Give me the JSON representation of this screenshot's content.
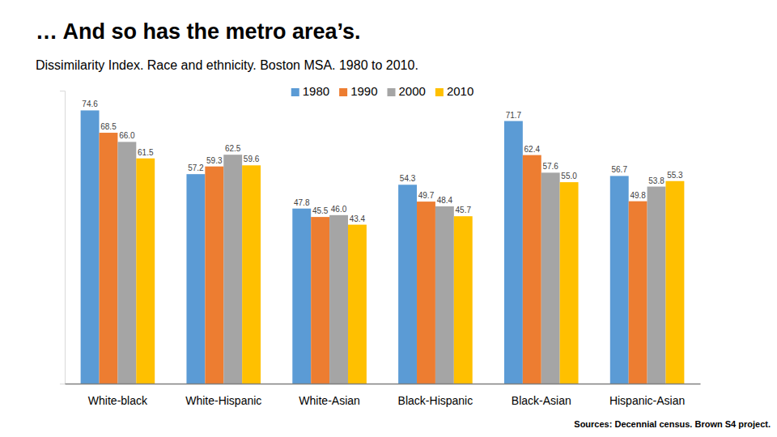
{
  "chart_data": {
    "type": "bar",
    "title": "… And so has the metro area’s.",
    "subtitle": "Dissimilarity Index. Race and ethnicity. Boston MSA. 1980 to 2010.",
    "source": "Sources: Decennial census. Brown S4 project.",
    "categories": [
      "White-black",
      "White-Hispanic",
      "White-Asian",
      "Black-Hispanic",
      "Black-Asian",
      "Hispanic-Asian"
    ],
    "series": [
      {
        "name": "1980",
        "color": "#5b9bd5",
        "values": [
          74.6,
          57.2,
          47.8,
          54.3,
          71.7,
          56.7
        ],
        "value_labels": [
          "74.6",
          "57.2",
          "47.8",
          "54.3",
          "71.7",
          "56.7"
        ]
      },
      {
        "name": "1990",
        "color": "#ed7d31",
        "values": [
          68.5,
          59.3,
          45.5,
          49.7,
          62.4,
          49.8
        ],
        "value_labels": [
          "68.5",
          "59.3",
          "45.5",
          "49.7",
          "62.4",
          "49.8"
        ]
      },
      {
        "name": "2000",
        "color": "#a5a5a5",
        "values": [
          66.0,
          62.5,
          46.0,
          48.4,
          57.6,
          53.8
        ],
        "value_labels": [
          "66.0",
          "62.5",
          "46.0",
          "48.4",
          "57.6",
          "53.8"
        ]
      },
      {
        "name": "2010",
        "color": "#ffc000",
        "values": [
          61.5,
          59.6,
          43.4,
          45.7,
          55.0,
          55.3
        ],
        "value_labels": [
          "61.5",
          "59.6",
          "43.4",
          "45.7",
          "55.0",
          "55.3"
        ]
      }
    ],
    "ylim": [
      0,
      80
    ],
    "tick_labels": "x",
    "data_labels": true,
    "grid": false,
    "legend": "top"
  }
}
